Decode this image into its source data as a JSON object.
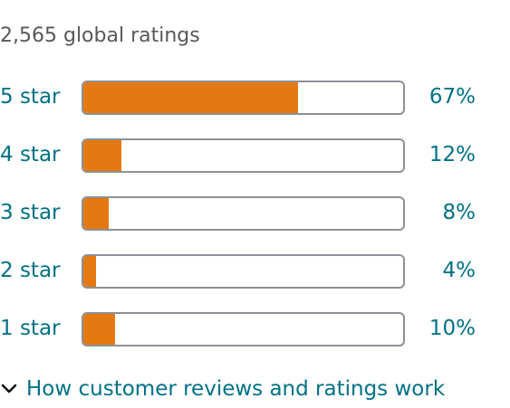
{
  "summary": {
    "total_ratings_text": "2,565 global ratings"
  },
  "histogram": [
    {
      "label": "5 star",
      "percent_text": "67%",
      "percent": 67
    },
    {
      "label": "4 star",
      "percent_text": "12%",
      "percent": 12
    },
    {
      "label": "3 star",
      "percent_text": "8%",
      "percent": 8
    },
    {
      "label": "2 star",
      "percent_text": "4%",
      "percent": 4
    },
    {
      "label": "1 star",
      "percent_text": "10%",
      "percent": 10
    }
  ],
  "colors": {
    "bar_fill": "#e47911",
    "bar_border": "#8d9096",
    "link": "#007185",
    "muted_text": "#565959"
  },
  "footer": {
    "how_link_text": "How customer reviews and ratings work",
    "icon": "chevron-down-icon"
  }
}
